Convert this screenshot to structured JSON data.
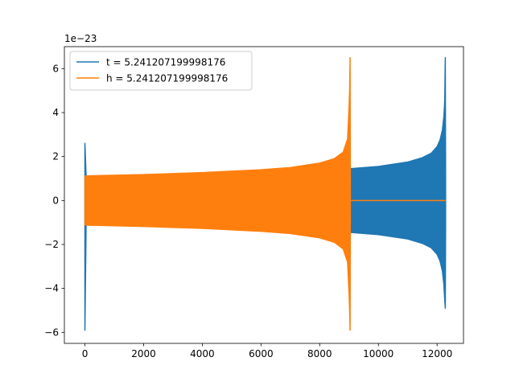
{
  "chart_data": {
    "type": "line",
    "title": "",
    "xlabel": "",
    "ylabel": "",
    "y_scale_label": "1e−23",
    "xlim": [
      -700,
      12900
    ],
    "ylim": [
      -6.5,
      7.0
    ],
    "xticks": [
      0,
      2000,
      4000,
      6000,
      8000,
      10000,
      12000
    ],
    "xtick_labels": [
      "0",
      "2000",
      "4000",
      "6000",
      "8000",
      "10000",
      "12000"
    ],
    "yticks": [
      -6,
      -4,
      -2,
      0,
      2,
      4,
      6
    ],
    "ytick_labels": [
      "−6",
      "−4",
      "−2",
      "0",
      "2",
      "4",
      "6"
    ],
    "grid": false,
    "legend_position": "upper-left",
    "series": [
      {
        "name": "t = 5.241207199998176",
        "color": "#1f77b4",
        "style": "oscillation-envelope",
        "envelope_x": [
          0,
          40,
          9000,
          9050,
          10000,
          11000,
          11500,
          11800,
          12000,
          12100,
          12180,
          12230,
          12260,
          12280,
          12290
        ],
        "envelope_upper": [
          2.6,
          1.1,
          1.42,
          1.45,
          1.55,
          1.75,
          1.95,
          2.15,
          2.45,
          2.75,
          3.2,
          3.8,
          4.5,
          6.5,
          1.0
        ],
        "envelope_lower": [
          -5.9,
          -1.1,
          -1.42,
          -1.45,
          -1.55,
          -1.75,
          -1.95,
          -2.15,
          -2.45,
          -2.75,
          -3.2,
          -3.8,
          -4.5,
          -4.9,
          -1.0
        ],
        "constant_segment": null
      },
      {
        "name": "h = 5.241207199998176",
        "color": "#ff7f0e",
        "style": "oscillation-envelope",
        "envelope_x": [
          0,
          40,
          2000,
          4000,
          6000,
          7000,
          8000,
          8500,
          8800,
          8950,
          9000,
          9020,
          9035,
          9045
        ],
        "envelope_upper": [
          1.1,
          1.12,
          1.18,
          1.27,
          1.4,
          1.5,
          1.7,
          1.9,
          2.2,
          2.8,
          4.2,
          5.0,
          6.5,
          0.0
        ],
        "envelope_lower": [
          -1.1,
          -1.12,
          -1.18,
          -1.27,
          -1.4,
          -1.5,
          -1.7,
          -1.9,
          -2.2,
          -2.8,
          -4.2,
          -5.0,
          -5.9,
          0.0
        ],
        "constant_segment": {
          "x0": 9045,
          "x1": 12290,
          "y": 0
        }
      }
    ]
  }
}
